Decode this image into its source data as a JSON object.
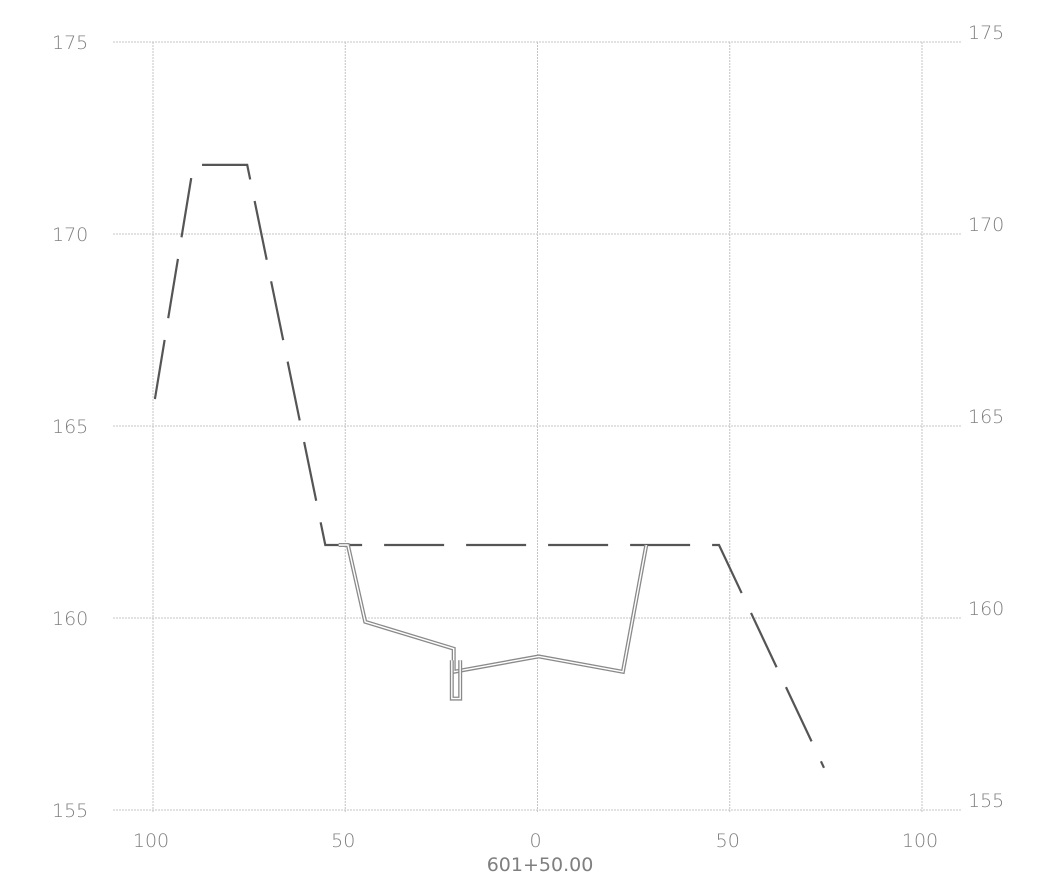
{
  "chart_data": {
    "type": "line",
    "title": "",
    "xlabel": "601+50.00",
    "ylabel": "",
    "xlim": [
      -100,
      100
    ],
    "ylim": [
      155,
      175
    ],
    "x_ticks": [
      -100,
      -50,
      0,
      50,
      100
    ],
    "x_tick_labels": [
      "100",
      "50",
      "0",
      "50",
      "100"
    ],
    "y_ticks": [
      155,
      160,
      165,
      170,
      175
    ],
    "y_tick_labels": [
      "155",
      "160",
      "165",
      "170",
      "175"
    ],
    "grid": true,
    "series": [
      {
        "style": "dashed",
        "color": "#555555",
        "points": [
          [
            -99.5,
            165.7
          ],
          [
            -89.5,
            171.8
          ],
          [
            -75.5,
            171.8
          ],
          [
            -55.2,
            161.9
          ],
          [
            47.2,
            161.9
          ],
          [
            74.5,
            156.1
          ]
        ]
      },
      {
        "style": "double",
        "color": "#8a8a8a",
        "points": [
          [
            -51.7,
            161.9
          ],
          [
            -49.3,
            161.9
          ],
          [
            -44.8,
            159.9
          ],
          [
            -21.8,
            159.2
          ],
          [
            -21.8,
            158.6
          ],
          [
            0.3,
            159.0
          ],
          [
            22.2,
            158.6
          ],
          [
            28.3,
            161.9
          ]
        ]
      },
      {
        "style": "double",
        "color": "#8a8a8a",
        "points": [
          [
            -22.3,
            158.9
          ],
          [
            -22.3,
            157.9
          ],
          [
            -20.1,
            157.9
          ],
          [
            -20.1,
            158.9
          ]
        ]
      }
    ]
  }
}
